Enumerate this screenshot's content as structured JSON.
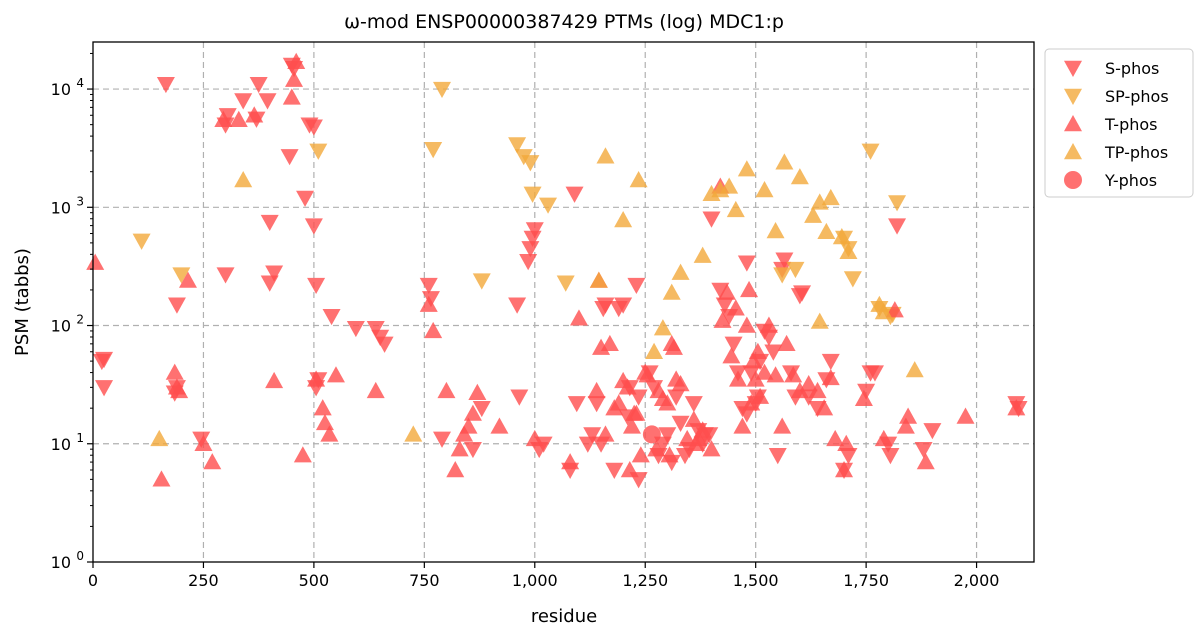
{
  "chart_data": {
    "type": "scatter",
    "title": "ω-mod ENSP00000387429 PTMs (log) MDC1:p",
    "xlabel": "residue",
    "ylabel": "PSM (tabbs)",
    "xlim": [
      0,
      2130
    ],
    "ylim": [
      1,
      25000
    ],
    "y_scale": "log",
    "grid": true,
    "legend_position": "upper-right-outside",
    "x_ticks": [
      0,
      250,
      500,
      750,
      1000,
      1250,
      1500,
      1750,
      2000
    ],
    "x_tick_labels": [
      "0",
      "250",
      "500",
      "750",
      "1,000",
      "1,250",
      "1,500",
      "1,750",
      "2,000"
    ],
    "y_ticks": [
      1,
      10,
      100,
      1000,
      10000
    ],
    "y_tick_labels": [
      "10^0",
      "10^1",
      "10^2",
      "10^3",
      "10^4"
    ],
    "series": [
      {
        "name": "S-phos",
        "marker": "triangle-down",
        "color": "#ff4d4d",
        "points": [
          [
            20,
            50
          ],
          [
            25,
            52
          ],
          [
            25,
            30
          ],
          [
            165,
            11000
          ],
          [
            185,
            27
          ],
          [
            190,
            30
          ],
          [
            190,
            150
          ],
          [
            245,
            11
          ],
          [
            300,
            5000
          ],
          [
            300,
            270
          ],
          [
            305,
            6000
          ],
          [
            340,
            8000
          ],
          [
            370,
            5600
          ],
          [
            375,
            11000
          ],
          [
            395,
            8000
          ],
          [
            400,
            750
          ],
          [
            400,
            230
          ],
          [
            410,
            280
          ],
          [
            445,
            2700
          ],
          [
            450,
            16000
          ],
          [
            455,
            15000
          ],
          [
            480,
            1200
          ],
          [
            490,
            5000
          ],
          [
            500,
            4800
          ],
          [
            500,
            700
          ],
          [
            505,
            220
          ],
          [
            505,
            30
          ],
          [
            510,
            35
          ],
          [
            540,
            120
          ],
          [
            595,
            95
          ],
          [
            640,
            95
          ],
          [
            650,
            80
          ],
          [
            660,
            70
          ],
          [
            760,
            220
          ],
          [
            765,
            170
          ],
          [
            790,
            11
          ],
          [
            860,
            9
          ],
          [
            880,
            20
          ],
          [
            960,
            150
          ],
          [
            965,
            25
          ],
          [
            985,
            350
          ],
          [
            990,
            450
          ],
          [
            995,
            550
          ],
          [
            1000,
            650
          ],
          [
            1010,
            9
          ],
          [
            1020,
            10
          ],
          [
            1080,
            6
          ],
          [
            1090,
            1300
          ],
          [
            1095,
            22
          ],
          [
            1120,
            10
          ],
          [
            1130,
            12
          ],
          [
            1140,
            22
          ],
          [
            1150,
            10
          ],
          [
            1155,
            140
          ],
          [
            1160,
            150
          ],
          [
            1180,
            6
          ],
          [
            1190,
            140
          ],
          [
            1200,
            150
          ],
          [
            1210,
            17
          ],
          [
            1215,
            30
          ],
          [
            1230,
            220
          ],
          [
            1235,
            25
          ],
          [
            1235,
            5
          ],
          [
            1260,
            40
          ],
          [
            1270,
            30
          ],
          [
            1280,
            8
          ],
          [
            1290,
            10
          ],
          [
            1300,
            12
          ],
          [
            1310,
            7
          ],
          [
            1320,
            25
          ],
          [
            1330,
            15
          ],
          [
            1340,
            8
          ],
          [
            1350,
            9
          ],
          [
            1360,
            22
          ],
          [
            1370,
            13
          ],
          [
            1380,
            10
          ],
          [
            1385,
            12
          ],
          [
            1395,
            12
          ],
          [
            1400,
            800
          ],
          [
            1420,
            200
          ],
          [
            1430,
            150
          ],
          [
            1440,
            120
          ],
          [
            1450,
            70
          ],
          [
            1460,
            40
          ],
          [
            1470,
            20
          ],
          [
            1480,
            340
          ],
          [
            1480,
            18
          ],
          [
            1490,
            40
          ],
          [
            1500,
            22
          ],
          [
            1505,
            25
          ],
          [
            1510,
            50
          ],
          [
            1520,
            90
          ],
          [
            1530,
            80
          ],
          [
            1540,
            60
          ],
          [
            1550,
            8
          ],
          [
            1560,
            300
          ],
          [
            1565,
            360
          ],
          [
            1580,
            40
          ],
          [
            1590,
            25
          ],
          [
            1600,
            180
          ],
          [
            1605,
            190
          ],
          [
            1620,
            25
          ],
          [
            1640,
            20
          ],
          [
            1660,
            35
          ],
          [
            1670,
            50
          ],
          [
            1700,
            6
          ],
          [
            1710,
            8
          ],
          [
            1750,
            28
          ],
          [
            1760,
            40
          ],
          [
            1770,
            40
          ],
          [
            1800,
            10
          ],
          [
            1805,
            8
          ],
          [
            1820,
            700
          ],
          [
            1880,
            9
          ],
          [
            1900,
            13
          ],
          [
            2090,
            22
          ],
          [
            2095,
            20
          ]
        ]
      },
      {
        "name": "SP-phos",
        "marker": "triangle-down",
        "color": "#f2a93b",
        "points": [
          [
            110,
            520
          ],
          [
            200,
            270
          ],
          [
            510,
            3000
          ],
          [
            770,
            3100
          ],
          [
            790,
            10000
          ],
          [
            880,
            240
          ],
          [
            960,
            3400
          ],
          [
            975,
            2700
          ],
          [
            990,
            2400
          ],
          [
            995,
            1300
          ],
          [
            1030,
            1050
          ],
          [
            1070,
            230
          ],
          [
            1760,
            3000
          ],
          [
            1780,
            140
          ],
          [
            1805,
            120
          ],
          [
            1810,
            125
          ],
          [
            1820,
            1100
          ],
          [
            1700,
            550
          ],
          [
            1710,
            450
          ],
          [
            1720,
            250
          ],
          [
            1590,
            300
          ],
          [
            1560,
            270
          ]
        ]
      },
      {
        "name": "T-phos",
        "marker": "triangle-up",
        "color": "#ff4d4d",
        "points": [
          [
            5,
            340
          ],
          [
            155,
            5
          ],
          [
            185,
            40
          ],
          [
            190,
            30
          ],
          [
            195,
            28
          ],
          [
            215,
            240
          ],
          [
            250,
            10
          ],
          [
            270,
            7
          ],
          [
            295,
            5500
          ],
          [
            330,
            5500
          ],
          [
            365,
            6000
          ],
          [
            410,
            34
          ],
          [
            450,
            8500
          ],
          [
            455,
            12000
          ],
          [
            460,
            17000
          ],
          [
            475,
            8
          ],
          [
            505,
            35
          ],
          [
            520,
            20
          ],
          [
            525,
            15
          ],
          [
            535,
            12
          ],
          [
            550,
            38
          ],
          [
            640,
            28
          ],
          [
            760,
            150
          ],
          [
            770,
            90
          ],
          [
            800,
            28
          ],
          [
            820,
            6
          ],
          [
            830,
            9
          ],
          [
            840,
            12
          ],
          [
            850,
            14
          ],
          [
            860,
            18
          ],
          [
            870,
            27
          ],
          [
            920,
            14
          ],
          [
            1000,
            11
          ],
          [
            1080,
            7
          ],
          [
            1100,
            115
          ],
          [
            1140,
            28
          ],
          [
            1145,
            240
          ],
          [
            1150,
            65
          ],
          [
            1160,
            12
          ],
          [
            1170,
            70
          ],
          [
            1180,
            20
          ],
          [
            1190,
            22
          ],
          [
            1200,
            34
          ],
          [
            1210,
            30
          ],
          [
            1215,
            6
          ],
          [
            1220,
            14
          ],
          [
            1225,
            18
          ],
          [
            1230,
            18
          ],
          [
            1240,
            8
          ],
          [
            1250,
            40
          ],
          [
            1255,
            38
          ],
          [
            1275,
            9
          ],
          [
            1280,
            28
          ],
          [
            1290,
            24
          ],
          [
            1300,
            22
          ],
          [
            1305,
            8
          ],
          [
            1310,
            70
          ],
          [
            1315,
            65
          ],
          [
            1320,
            35
          ],
          [
            1330,
            32
          ],
          [
            1345,
            11
          ],
          [
            1360,
            16
          ],
          [
            1365,
            10
          ],
          [
            1370,
            11
          ],
          [
            1380,
            13
          ],
          [
            1400,
            9
          ],
          [
            1420,
            1500
          ],
          [
            1425,
            110
          ],
          [
            1435,
            190
          ],
          [
            1445,
            55
          ],
          [
            1455,
            140
          ],
          [
            1460,
            35
          ],
          [
            1470,
            14
          ],
          [
            1480,
            100
          ],
          [
            1485,
            200
          ],
          [
            1490,
            22
          ],
          [
            1495,
            50
          ],
          [
            1500,
            35
          ],
          [
            1505,
            60
          ],
          [
            1510,
            25
          ],
          [
            1520,
            40
          ],
          [
            1530,
            100
          ],
          [
            1545,
            38
          ],
          [
            1560,
            14
          ],
          [
            1570,
            70
          ],
          [
            1585,
            38
          ],
          [
            1600,
            28
          ],
          [
            1620,
            32
          ],
          [
            1640,
            28
          ],
          [
            1655,
            20
          ],
          [
            1670,
            36
          ],
          [
            1680,
            11
          ],
          [
            1700,
            6
          ],
          [
            1705,
            10
          ],
          [
            1745,
            24
          ],
          [
            1790,
            11
          ],
          [
            1815,
            135
          ],
          [
            1840,
            14
          ],
          [
            1845,
            17
          ],
          [
            1885,
            7
          ],
          [
            1975,
            17
          ],
          [
            2090,
            20
          ]
        ]
      },
      {
        "name": "TP-phos",
        "marker": "triangle-up",
        "color": "#f2a93b",
        "points": [
          [
            150,
            11
          ],
          [
            340,
            1700
          ],
          [
            725,
            12
          ],
          [
            1145,
            240
          ],
          [
            1160,
            2700
          ],
          [
            1200,
            780
          ],
          [
            1235,
            1700
          ],
          [
            1270,
            60
          ],
          [
            1290,
            95
          ],
          [
            1310,
            190
          ],
          [
            1330,
            280
          ],
          [
            1380,
            390
          ],
          [
            1400,
            1300
          ],
          [
            1420,
            1400
          ],
          [
            1440,
            1500
          ],
          [
            1455,
            950
          ],
          [
            1480,
            2100
          ],
          [
            1520,
            1400
          ],
          [
            1545,
            630
          ],
          [
            1565,
            2400
          ],
          [
            1600,
            1800
          ],
          [
            1630,
            850
          ],
          [
            1645,
            1100
          ],
          [
            1660,
            620
          ],
          [
            1670,
            1200
          ],
          [
            1695,
            560
          ],
          [
            1710,
            420
          ],
          [
            1645,
            108
          ],
          [
            1780,
            150
          ],
          [
            1790,
            130
          ],
          [
            1860,
            42
          ]
        ]
      },
      {
        "name": "Y-phos",
        "marker": "circle",
        "color": "#ff4d4d",
        "points": [
          [
            1265,
            12
          ]
        ]
      }
    ]
  }
}
